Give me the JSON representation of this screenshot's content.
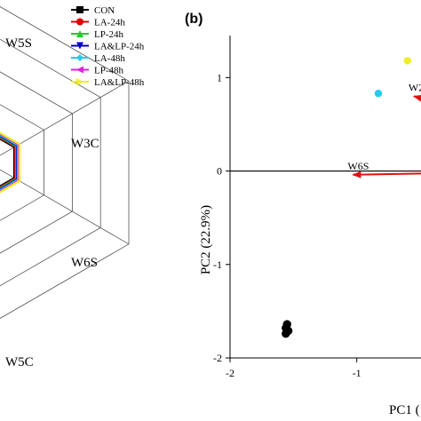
{
  "panel_a": {
    "radar": {
      "axis_labels": [
        "W5S",
        "W3C",
        "W6S",
        "W5C"
      ],
      "legend": [
        {
          "name": "CON",
          "color": "#000000",
          "marker": "square"
        },
        {
          "name": "LA-24h",
          "color": "#e00000",
          "marker": "circle"
        },
        {
          "name": "LP-24h",
          "color": "#22cc22",
          "marker": "triangle-up"
        },
        {
          "name": "LA&LP-24h",
          "color": "#0000cc",
          "marker": "triangle-down"
        },
        {
          "name": "LA-48h",
          "color": "#22ccee",
          "marker": "diamond"
        },
        {
          "name": "LP-48h",
          "color": "#dd22dd",
          "marker": "triangle-left"
        },
        {
          "name": "LA&LP-48h",
          "color": "#eeee22",
          "marker": "triangle-right"
        }
      ]
    }
  },
  "chart_data": {
    "type": "scatter",
    "panel_label": "(b)",
    "xlabel": "PC1 (",
    "ylabel": "PC2 (22.9%)",
    "xlim": [
      -2,
      0.6
    ],
    "ylim": [
      -2,
      1.45
    ],
    "x_ticks": [
      -2,
      -1
    ],
    "y_ticks": [
      -2,
      -1,
      0,
      1
    ],
    "points": [
      {
        "x": -1.55,
        "y": -1.64,
        "color": "#000000"
      },
      {
        "x": -1.56,
        "y": -1.68,
        "color": "#000000"
      },
      {
        "x": -1.54,
        "y": -1.71,
        "color": "#000000"
      },
      {
        "x": -1.56,
        "y": -1.74,
        "color": "#000000"
      },
      {
        "x": -0.83,
        "y": 0.83,
        "color": "#22ccee"
      },
      {
        "x": -0.6,
        "y": 1.18,
        "color": "#eeee22"
      }
    ],
    "vectors": [
      {
        "label": "W2W",
        "x0": 0.6,
        "y0": 0.4,
        "x1": -0.55,
        "y1": 0.8
      },
      {
        "label": "W6S",
        "x0": 0.6,
        "y0": 0.0,
        "x1": -1.03,
        "y1": -0.04
      }
    ],
    "reference_lines": {
      "horizontal_at_y": 0
    }
  }
}
